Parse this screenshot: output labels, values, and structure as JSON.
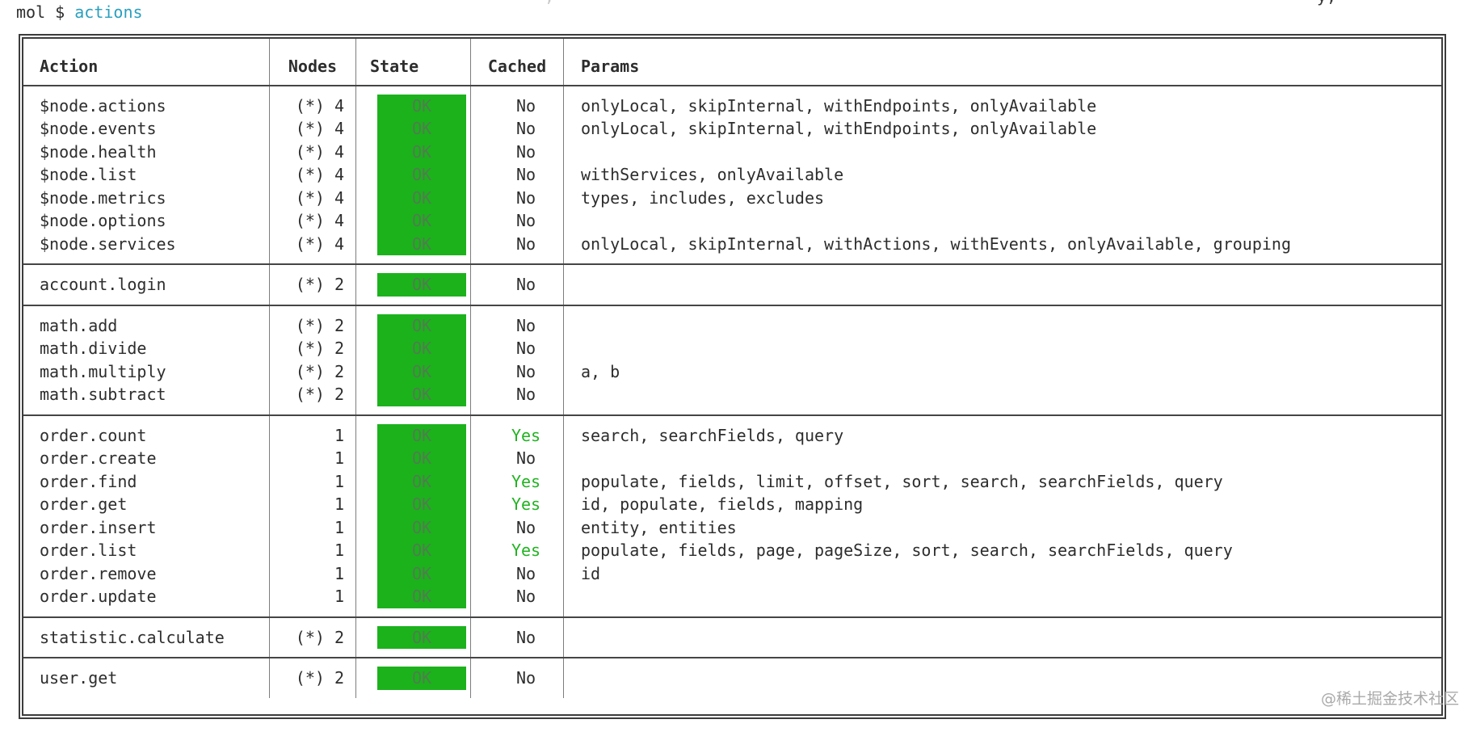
{
  "terminal": {
    "prompt": "mol $ ",
    "command": "actions"
  },
  "fragments": {
    "left": ",",
    "right": "y,"
  },
  "colors": {
    "command_cyan": "#2a9fbe",
    "ok_badge_green": "#1cb21c",
    "ok_text": "#517c50",
    "cached_yes_green": "#21b321",
    "text": "#2d2d2d",
    "outer_border": "#3c3c3c",
    "row_separator": "#454545",
    "column_separator": "#7d7d7d",
    "watermark_gray": "#a9a9a9"
  },
  "table": {
    "headers": [
      "Action",
      "Nodes",
      "State",
      "Cached",
      "Params"
    ],
    "state_ok_label": "OK",
    "groups": [
      {
        "rows": [
          {
            "action": "$node.actions",
            "nodes": "(*) 4",
            "state": "OK",
            "cached": "No",
            "params": "onlyLocal, skipInternal, withEndpoints, onlyAvailable"
          },
          {
            "action": "$node.events",
            "nodes": "(*) 4",
            "state": "OK",
            "cached": "No",
            "params": "onlyLocal, skipInternal, withEndpoints, onlyAvailable"
          },
          {
            "action": "$node.health",
            "nodes": "(*) 4",
            "state": "OK",
            "cached": "No",
            "params": ""
          },
          {
            "action": "$node.list",
            "nodes": "(*) 4",
            "state": "OK",
            "cached": "No",
            "params": "withServices, onlyAvailable"
          },
          {
            "action": "$node.metrics",
            "nodes": "(*) 4",
            "state": "OK",
            "cached": "No",
            "params": "types, includes, excludes"
          },
          {
            "action": "$node.options",
            "nodes": "(*) 4",
            "state": "OK",
            "cached": "No",
            "params": ""
          },
          {
            "action": "$node.services",
            "nodes": "(*) 4",
            "state": "OK",
            "cached": "No",
            "params": "onlyLocal, skipInternal, withActions, withEvents, onlyAvailable, grouping"
          }
        ]
      },
      {
        "rows": [
          {
            "action": "account.login",
            "nodes": "(*) 2",
            "state": "OK",
            "cached": "No",
            "params": ""
          }
        ]
      },
      {
        "rows": [
          {
            "action": "math.add",
            "nodes": "(*) 2",
            "state": "OK",
            "cached": "No",
            "params": ""
          },
          {
            "action": "math.divide",
            "nodes": "(*) 2",
            "state": "OK",
            "cached": "No",
            "params": ""
          },
          {
            "action": "math.multiply",
            "nodes": "(*) 2",
            "state": "OK",
            "cached": "No",
            "params": "a, b"
          },
          {
            "action": "math.subtract",
            "nodes": "(*) 2",
            "state": "OK",
            "cached": "No",
            "params": ""
          }
        ]
      },
      {
        "rows": [
          {
            "action": "order.count",
            "nodes": "1",
            "state": "OK",
            "cached": "Yes",
            "params": "search, searchFields, query"
          },
          {
            "action": "order.create",
            "nodes": "1",
            "state": "OK",
            "cached": "No",
            "params": ""
          },
          {
            "action": "order.find",
            "nodes": "1",
            "state": "OK",
            "cached": "Yes",
            "params": "populate, fields, limit, offset, sort, search, searchFields, query"
          },
          {
            "action": "order.get",
            "nodes": "1",
            "state": "OK",
            "cached": "Yes",
            "params": "id, populate, fields, mapping"
          },
          {
            "action": "order.insert",
            "nodes": "1",
            "state": "OK",
            "cached": "No",
            "params": "entity, entities"
          },
          {
            "action": "order.list",
            "nodes": "1",
            "state": "OK",
            "cached": "Yes",
            "params": "populate, fields, page, pageSize, sort, search, searchFields, query"
          },
          {
            "action": "order.remove",
            "nodes": "1",
            "state": "OK",
            "cached": "No",
            "params": "id"
          },
          {
            "action": "order.update",
            "nodes": "1",
            "state": "OK",
            "cached": "No",
            "params": ""
          }
        ]
      },
      {
        "rows": [
          {
            "action": "statistic.calculate",
            "nodes": "(*) 2",
            "state": "OK",
            "cached": "No",
            "params": ""
          }
        ]
      },
      {
        "rows": [
          {
            "action": "user.get",
            "nodes": "(*) 2",
            "state": "OK",
            "cached": "No",
            "params": ""
          }
        ]
      }
    ]
  },
  "watermark": "@稀土掘金技术社区"
}
